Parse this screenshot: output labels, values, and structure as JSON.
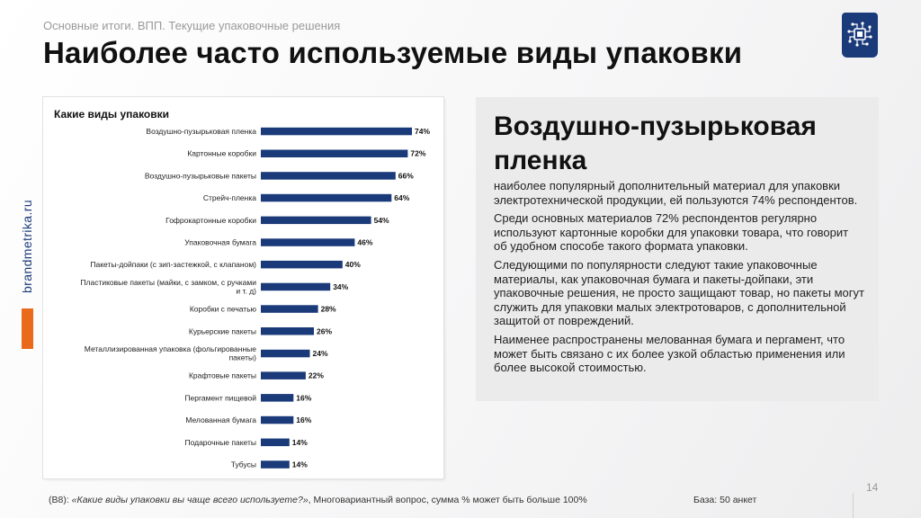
{
  "header": {
    "breadcrumb": "Основные итоги. ВПП. Текущие упаковочные решения",
    "title": "Наиболее часто используемые виды упаковки"
  },
  "sidebar": {
    "brand_text": "brandmetrika.ru"
  },
  "colors": {
    "bar": "#1b3a7a",
    "accent": "#ea6a1c",
    "brand": "#1b3a7a"
  },
  "logo": {
    "icon": "circuit-chip-icon"
  },
  "chart_data": {
    "type": "bar",
    "orientation": "horizontal",
    "title": "Какие виды упаковки",
    "categories": [
      "Воздушно-пузырьковая пленка",
      "Картонные коробки",
      "Воздушно-пузырьковые пакеты",
      "Стрейч-пленка",
      "Гофрокартонные коробки",
      "Упаковочная бумага",
      "Пакеты-дойпаки (с зип-застежкой, с клапаном)",
      "Пластиковые пакеты (майки, с замком, с ручками и т. д)",
      "Коробки с печатью",
      "Курьерские пакеты",
      "Металлизированная упаковка (фольгированные пакеты)",
      "Крафтовые пакеты",
      "Пергамент пищевой",
      "Мелованная бумага",
      "Подарочные пакеты",
      "Тубусы"
    ],
    "values": [
      74,
      72,
      66,
      64,
      54,
      46,
      40,
      34,
      28,
      26,
      24,
      22,
      16,
      16,
      14,
      14
    ],
    "value_labels": [
      "74%",
      "72%",
      "66%",
      "64%",
      "54%",
      "46%",
      "40%",
      "34%",
      "28%",
      "26%",
      "24%",
      "22%",
      "16%",
      "16%",
      "14%",
      "14%"
    ],
    "unit": "%",
    "xlim": [
      0,
      100
    ],
    "grid": false,
    "legend": "none"
  },
  "info": {
    "title": "Воздушно-пузырьковая пленка",
    "paragraphs": [
      "наиболее популярный дополнительный материал для упаковки электротехнической продукции, ей пользуются 74% респондентов.",
      "Среди основных материалов 72% респондентов регулярно используют картонные коробки для упаковки товара, что говорит об удобном способе такого формата упаковки.",
      "Следующими по популярности следуют такие упаковочные материалы, как упаковочная бумага и пакеты-дойпаки, эти упаковочные решения, не просто защищают товар, но пакеты могут служить для упаковки малых электротоваров, с дополнительной защитой от повреждений.",
      "Наименее распространены мелованная бумага и пергамент, что может быть связано с их более узкой областью применения или более высокой стоимостью."
    ]
  },
  "footer": {
    "question_code": "(B8): ",
    "question_text": "«Какие виды упаковки вы чаще всего используете?»",
    "question_note": ", Многовариантный вопрос, сумма % может быть больше 100%",
    "base": "База: 50 анкет",
    "page_number": "14"
  }
}
